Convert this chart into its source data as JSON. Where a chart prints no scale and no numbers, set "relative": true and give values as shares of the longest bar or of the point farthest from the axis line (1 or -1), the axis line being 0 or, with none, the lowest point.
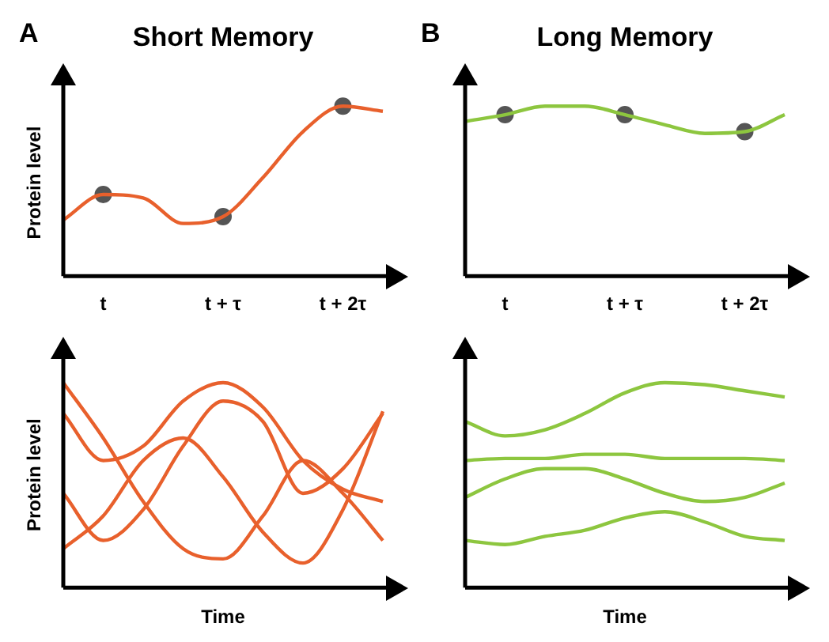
{
  "chart_data": [
    {
      "type": "line",
      "title": "Short Memory",
      "ylabel": "Protein level",
      "annotations": [
        "A"
      ],
      "relative": true,
      "tick_labels": "x",
      "grid": false,
      "legend": false,
      "marker": "none",
      "line_style": "solid",
      "categories": [
        null,
        "t",
        null,
        null,
        "t + τ",
        null,
        null,
        "t + 2τ",
        null
      ],
      "series": [
        {
          "color": "#e8602c",
          "values": [
            0.33,
            0.48,
            0.46,
            0.31,
            0.35,
            0.58,
            0.85,
            1,
            0.97
          ]
        },
        {
          "type": "scatter",
          "marker": "circle",
          "color": "#555555",
          "x": [
            "t",
            "t + τ",
            "t + 2τ"
          ],
          "values": [
            0.48,
            0.35,
            1
          ]
        }
      ]
    },
    {
      "type": "line",
      "title": "Long Memory",
      "annotations": [
        "B"
      ],
      "relative": true,
      "tick_labels": "x",
      "grid": false,
      "legend": false,
      "marker": "none",
      "line_style": "solid",
      "categories": [
        null,
        "t",
        null,
        null,
        "t + τ",
        null,
        null,
        "t + 2τ",
        null
      ],
      "series": [
        {
          "color": "#8dc63f",
          "values": [
            0.91,
            0.95,
            1,
            1,
            0.95,
            0.89,
            0.84,
            0.85,
            0.95
          ]
        },
        {
          "type": "scatter",
          "marker": "circle",
          "color": "#555555",
          "x": [
            "t",
            "t + τ",
            "t + 2τ"
          ],
          "values": [
            0.95,
            0.95,
            0.85
          ]
        }
      ]
    },
    {
      "type": "line",
      "ylabel": "Protein level",
      "xlabel": "Time",
      "relative": true,
      "tick_labels": false,
      "grid": false,
      "legend": false,
      "marker": "none",
      "line_style": "solid",
      "categories": [
        null,
        null,
        null,
        null,
        null,
        null,
        null,
        null,
        null
      ],
      "series": [
        {
          "color": "#e8602c",
          "values": [
            1,
            0.73,
            0.42,
            0.19,
            0.14,
            0.35,
            0.62,
            0.46,
            0.23
          ]
        },
        {
          "color": "#e8602c",
          "values": [
            0.85,
            0.62,
            0.69,
            0.91,
            1,
            0.88,
            0.62,
            0.48,
            0.42
          ]
        },
        {
          "color": "#e8602c",
          "values": [
            0.46,
            0.23,
            0.38,
            0.69,
            0.91,
            0.81,
            0.46,
            0.58,
            0.85
          ]
        },
        {
          "color": "#e8602c",
          "values": [
            0.19,
            0.35,
            0.62,
            0.73,
            0.54,
            0.27,
            0.12,
            0.38,
            0.86
          ]
        }
      ]
    },
    {
      "type": "line",
      "xlabel": "Time",
      "relative": true,
      "tick_labels": false,
      "grid": false,
      "legend": false,
      "marker": "none",
      "line_style": "solid",
      "categories": [
        null,
        null,
        null,
        null,
        null,
        null,
        null,
        null,
        null
      ],
      "series": [
        {
          "color": "#8dc63f",
          "values": [
            0.81,
            0.74,
            0.77,
            0.85,
            0.95,
            1,
            0.99,
            0.96,
            0.93
          ]
        },
        {
          "color": "#8dc63f",
          "values": [
            0.62,
            0.63,
            0.63,
            0.65,
            0.65,
            0.63,
            0.63,
            0.63,
            0.62
          ]
        },
        {
          "color": "#8dc63f",
          "values": [
            0.44,
            0.53,
            0.58,
            0.58,
            0.53,
            0.46,
            0.42,
            0.44,
            0.51
          ]
        },
        {
          "color": "#8dc63f",
          "values": [
            0.23,
            0.21,
            0.25,
            0.28,
            0.34,
            0.37,
            0.32,
            0.25,
            0.23
          ]
        }
      ]
    }
  ]
}
